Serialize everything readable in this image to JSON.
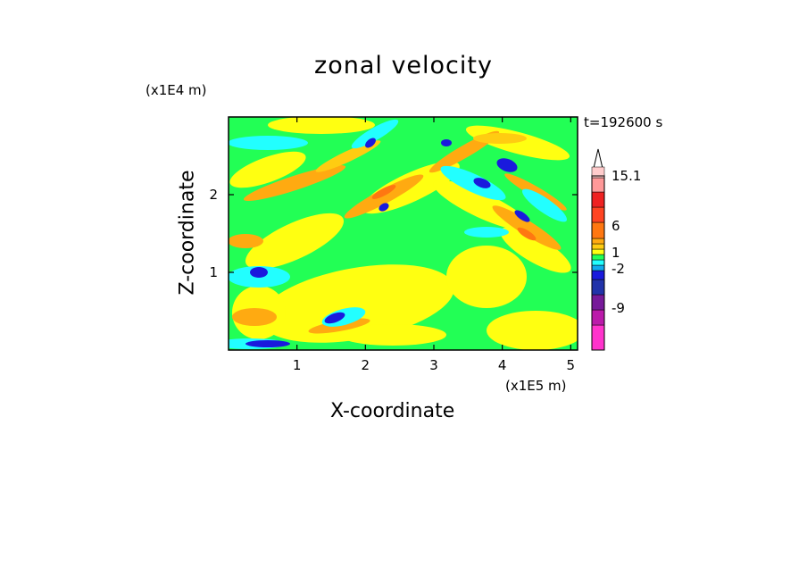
{
  "title": "zonal velocity",
  "z_unit": "(x1E4 m)",
  "x_unit": "(x1E5 m)",
  "timestamp": "t=192600 s",
  "chart_data": {
    "type": "heatmap",
    "title": "zonal velocity",
    "xlabel": "X-coordinate",
    "ylabel": "Z-coordinate",
    "x_unit": "(x1E5 m)",
    "y_unit": "(x1E4 m)",
    "xlim": [
      0,
      5.1
    ],
    "ylim": [
      0,
      3.0
    ],
    "x_ticks": [
      1,
      2,
      3,
      4,
      5
    ],
    "y_ticks": [
      1,
      2
    ],
    "colorbar": {
      "labels": [
        "15.1",
        "6",
        "1",
        "-2",
        "-9"
      ],
      "levels": [
        {
          "color": "#ff33cc"
        },
        {
          "color": "#bb1aaa"
        },
        {
          "color": "#771a9a"
        },
        {
          "color": "#2233aa"
        },
        {
          "color": "#1a1add"
        },
        {
          "color": "#11aaee"
        },
        {
          "color": "#22ffff"
        },
        {
          "color": "#22ff55"
        },
        {
          "color": "#ffff11"
        },
        {
          "color": "#ffcc11"
        },
        {
          "color": "#ffaa11"
        },
        {
          "color": "#ff7711"
        },
        {
          "color": "#ff4422"
        },
        {
          "color": "#ee2222"
        },
        {
          "color": "#ff9999"
        },
        {
          "color": "#ffcccc"
        },
        {
          "color": "#ffffff"
        }
      ]
    }
  }
}
